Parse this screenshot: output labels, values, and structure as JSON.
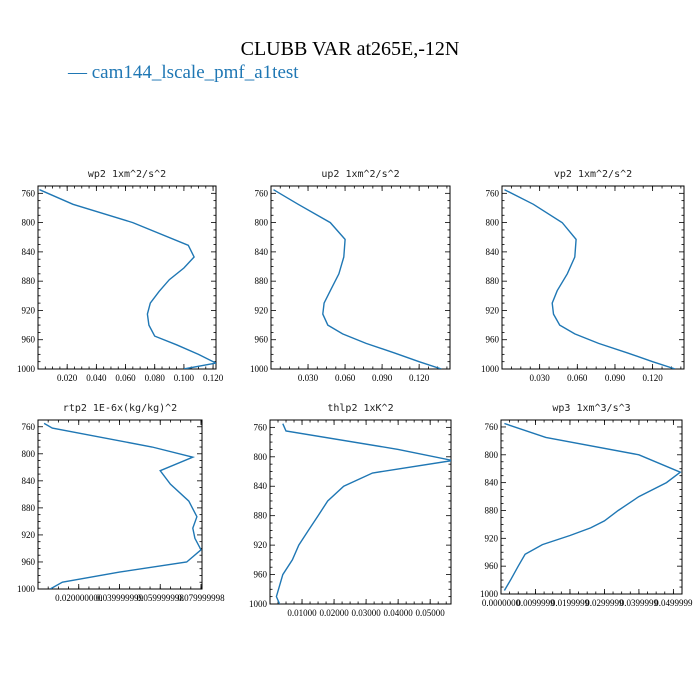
{
  "title": "CLUBB VAR at265E,-12N",
  "legend": {
    "entries": [
      {
        "label": "cam144_lscale_pmf_a1test",
        "color": "#1f77b4"
      }
    ]
  },
  "chart_data": [
    {
      "type": "line",
      "title": "wp2   1xm^2/s^2",
      "xlim": [
        0.0,
        0.122
      ],
      "ylim": [
        1000,
        750
      ],
      "xticks": [
        0.02,
        0.04,
        0.06,
        0.08,
        0.1,
        0.12
      ],
      "xtick_labels": [
        "0.020",
        "0.040",
        "0.060",
        "0.080",
        "0.100",
        "0.120"
      ],
      "yticks": [
        760,
        800,
        840,
        880,
        920,
        960,
        1000
      ],
      "ytick_labels": [
        "760",
        "800",
        "840",
        "880",
        "920",
        "960",
        "1000"
      ],
      "series": [
        {
          "color": "#1f77b4",
          "x": [
            0.001,
            0.024,
            0.065,
            0.103,
            0.107,
            0.1,
            0.09,
            0.083,
            0.077,
            0.075,
            0.076,
            0.08,
            0.095,
            0.11,
            0.122,
            0.1
          ],
          "y": [
            755,
            775,
            800,
            831,
            847,
            862,
            878,
            894,
            910,
            925,
            940,
            955,
            967,
            980,
            992,
            1000
          ]
        }
      ]
    },
    {
      "type": "line",
      "title": "up2   1xm^2/s^2",
      "xlim": [
        0.0,
        0.145
      ],
      "ylim": [
        1000,
        750
      ],
      "xticks": [
        0.03,
        0.06,
        0.09,
        0.12
      ],
      "xtick_labels": [
        "0.030",
        "0.060",
        "0.090",
        "0.120"
      ],
      "yticks": [
        760,
        800,
        840,
        880,
        920,
        960,
        1000
      ],
      "ytick_labels": [
        "760",
        "800",
        "840",
        "880",
        "920",
        "960",
        "1000"
      ],
      "series": [
        {
          "color": "#1f77b4",
          "x": [
            0.002,
            0.022,
            0.048,
            0.06,
            0.059,
            0.055,
            0.048,
            0.043,
            0.042,
            0.046,
            0.058,
            0.077,
            0.1,
            0.12,
            0.138
          ],
          "y": [
            755,
            775,
            800,
            823,
            847,
            870,
            893,
            910,
            925,
            940,
            952,
            965,
            978,
            990,
            1000
          ]
        }
      ]
    },
    {
      "type": "line",
      "title": "vp2   1xm^2/s^2",
      "xlim": [
        0.0,
        0.145
      ],
      "ylim": [
        1000,
        750
      ],
      "xticks": [
        0.03,
        0.06,
        0.09,
        0.12
      ],
      "xtick_labels": [
        "0.030",
        "0.060",
        "0.090",
        "0.120"
      ],
      "yticks": [
        760,
        800,
        840,
        880,
        920,
        960,
        1000
      ],
      "ytick_labels": [
        "760",
        "800",
        "840",
        "880",
        "920",
        "960",
        "1000"
      ],
      "series": [
        {
          "color": "#1f77b4",
          "x": [
            0.002,
            0.025,
            0.048,
            0.059,
            0.058,
            0.052,
            0.044,
            0.04,
            0.041,
            0.046,
            0.058,
            0.077,
            0.1,
            0.12,
            0.138
          ],
          "y": [
            755,
            775,
            800,
            823,
            847,
            870,
            893,
            910,
            925,
            940,
            952,
            965,
            978,
            990,
            1000
          ]
        }
      ]
    },
    {
      "type": "line",
      "title": "rtp2   1E-6x(kg/kg)^2",
      "xlim": [
        0.0,
        0.0805
      ],
      "ylim": [
        1000,
        750
      ],
      "xticks": [
        0.02,
        0.04,
        0.06,
        0.08
      ],
      "xtick_labels": [
        "0.020000000",
        "0.039999999",
        "0.059999998",
        "0.079999998"
      ],
      "yticks": [
        760,
        800,
        840,
        880,
        920,
        960,
        1000
      ],
      "ytick_labels": [
        "760",
        "800",
        "840",
        "880",
        "920",
        "960",
        "1000"
      ],
      "series": [
        {
          "color": "#1f77b4",
          "x": [
            0.003,
            0.007,
            0.056,
            0.076,
            0.06,
            0.065,
            0.074,
            0.078,
            0.076,
            0.077,
            0.08,
            0.073,
            0.04,
            0.012,
            0.006
          ],
          "y": [
            755,
            762,
            790,
            805,
            825,
            845,
            870,
            893,
            910,
            925,
            942,
            960,
            975,
            990,
            1000
          ]
        }
      ]
    },
    {
      "type": "line",
      "title": "thlp2   1xK^2",
      "xlim": [
        0.0,
        0.0565
      ],
      "ylim": [
        1000,
        750
      ],
      "xticks": [
        0.01,
        0.02,
        0.03,
        0.04,
        0.05
      ],
      "xtick_labels": [
        "0.01000",
        "0.02000",
        "0.03000",
        "0.04000",
        "0.05000"
      ],
      "yticks": [
        760,
        800,
        840,
        880,
        920,
        960,
        1000
      ],
      "ytick_labels": [
        "760",
        "800",
        "840",
        "880",
        "920",
        "960",
        "1000"
      ],
      "series": [
        {
          "color": "#1f77b4",
          "x": [
            0.004,
            0.005,
            0.04,
            0.057,
            0.032,
            0.023,
            0.018,
            0.015,
            0.012,
            0.009,
            0.007,
            0.004,
            0.003,
            0.002,
            0.003
          ],
          "y": [
            755,
            765,
            790,
            805,
            822,
            840,
            860,
            880,
            900,
            920,
            940,
            960,
            975,
            990,
            1000
          ]
        }
      ]
    },
    {
      "type": "line",
      "title": "wp3   1xm^3/s^3",
      "xlim": [
        0.0,
        0.0525
      ],
      "ylim": [
        1000,
        750
      ],
      "xticks": [
        0.0,
        0.01,
        0.02,
        0.03,
        0.04,
        0.05
      ],
      "xtick_labels": [
        "0.0000000",
        "0.0099999",
        "0.0199999",
        "0.0299999",
        "0.0399999",
        "0.0499999"
      ],
      "yticks": [
        760,
        800,
        840,
        880,
        920,
        960,
        1000
      ],
      "ytick_labels": [
        "760",
        "800",
        "840",
        "880",
        "920",
        "960",
        "1000"
      ],
      "series": [
        {
          "color": "#1f77b4",
          "x": [
            0.001,
            0.013,
            0.04,
            0.052,
            0.048,
            0.04,
            0.034,
            0.03,
            0.026,
            0.02,
            0.012,
            0.007,
            0.005,
            0.003,
            0.001
          ],
          "y": [
            755,
            775,
            800,
            825,
            840,
            860,
            880,
            895,
            905,
            916,
            929,
            943,
            960,
            978,
            995
          ]
        }
      ]
    }
  ]
}
